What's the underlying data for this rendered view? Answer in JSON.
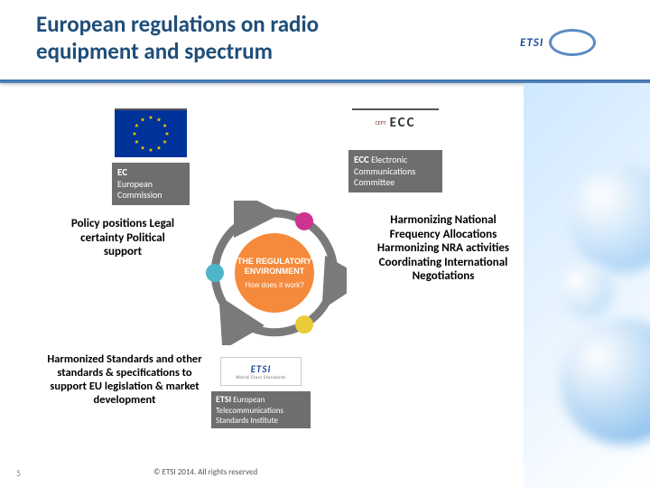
{
  "title_line1": "European regulations on radio",
  "title_line2": "equipment and spectrum",
  "title_color": "#1f4e79",
  "title_fontsize": 25,
  "divider_color": "#3a6ea5",
  "etsi_header": {
    "text": "ETSI"
  },
  "orgs": {
    "ec": {
      "label_title": "EC",
      "label_sub1": "European",
      "label_sub2": "Commission",
      "flag_bg": "#003399",
      "flag_star_color": "#ffcc00"
    },
    "ecc": {
      "mark_prefix": "CEPT",
      "mark_text": "ECC",
      "label_title": "ECC",
      "label_sub1": "Electronic",
      "label_sub2": "Communications",
      "label_sub3": "Committee"
    },
    "etsi": {
      "mark_text": "ETSI",
      "mark_tagline": "World Class Standards",
      "label_title": "ETSI",
      "label_sub1": "European",
      "label_sub2": "Telecommunications",
      "label_sub3": "Standards Institute"
    }
  },
  "circle_diagram": {
    "center_title": "THE REGULATORY",
    "center_title2": "ENVIRONMENT",
    "center_sub": "How does it work?",
    "center_bg": "#f58a3c",
    "center_title_color": "#ffffff",
    "center_title_fontsize": 9,
    "center_sub_fontsize": 8,
    "arrow_color": "#7a7a7a",
    "dots": [
      {
        "color": "#ce328f",
        "angle": 30
      },
      {
        "color": "#eacb3a",
        "angle": 150
      },
      {
        "color": "#4eb5c9",
        "angle": 270
      }
    ],
    "dot_radius": 10,
    "ring_radius": 66
  },
  "annotations": {
    "left": "Policy positions Legal certainty Political support",
    "right": "Harmonizing National Frequency Allocations Harmonizing NRA activities Coordinating International Negotiations",
    "bottom": "Harmonized Standards and other standards & specifications to support EU legislation & market development"
  },
  "footer": "© ETSI 2014. All rights reserved",
  "page_number": "5",
  "label_box_bg": "#6e6e6e",
  "label_box_fg": "#ffffff",
  "deco_colors": {
    "grad_start": "#cfe8ff",
    "grad_end": "#ffffff",
    "blob1": "#8fc4f2",
    "blob2": "#6aaee8",
    "blob3": "#b0d6f5"
  }
}
